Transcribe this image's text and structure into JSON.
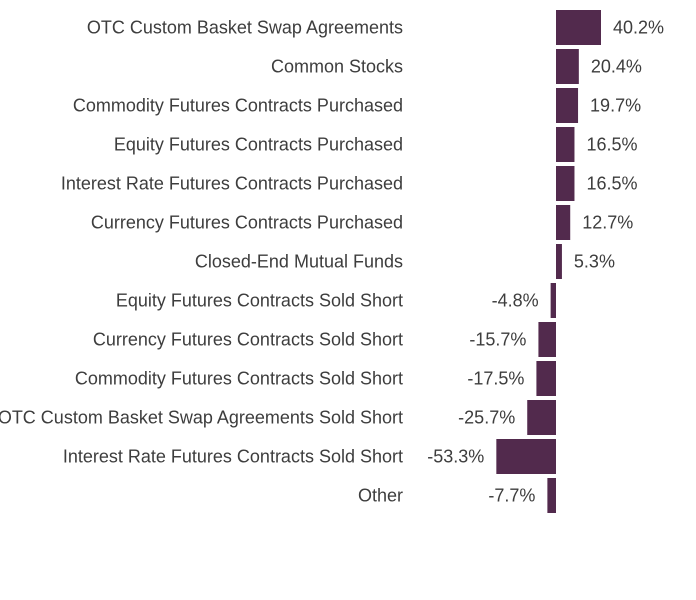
{
  "chart_data": {
    "type": "bar",
    "orientation": "horizontal",
    "bar_color": "#522a4d",
    "text_color": "#3d3d3d",
    "grid": false,
    "legend": "none",
    "xlim": [
      -55,
      42
    ],
    "categories": [
      "OTC Custom Basket Swap Agreements",
      "Common Stocks",
      "Commodity Futures Contracts Purchased",
      "Equity Futures Contracts Purchased",
      "Interest Rate Futures Contracts Purchased",
      "Currency Futures Contracts Purchased",
      "Closed-End Mutual Funds",
      "Equity Futures Contracts Sold Short",
      "Currency Futures Contracts Sold Short",
      "Commodity Futures Contracts Sold Short",
      "OTC Custom Basket Swap Agreements Sold Short",
      "Interest Rate Futures Contracts Sold Short",
      "Other"
    ],
    "values": [
      40.2,
      20.4,
      19.7,
      16.5,
      16.5,
      12.7,
      5.3,
      -4.8,
      -15.7,
      -17.5,
      -25.7,
      -53.3,
      -7.7
    ],
    "value_labels": [
      "40.2%",
      "20.4%",
      "19.7%",
      "16.5%",
      "16.5%",
      "12.7%",
      "5.3%",
      "-4.8%",
      "-15.7%",
      "-17.5%",
      "-25.7%",
      "-53.3%",
      "-7.7%"
    ]
  }
}
